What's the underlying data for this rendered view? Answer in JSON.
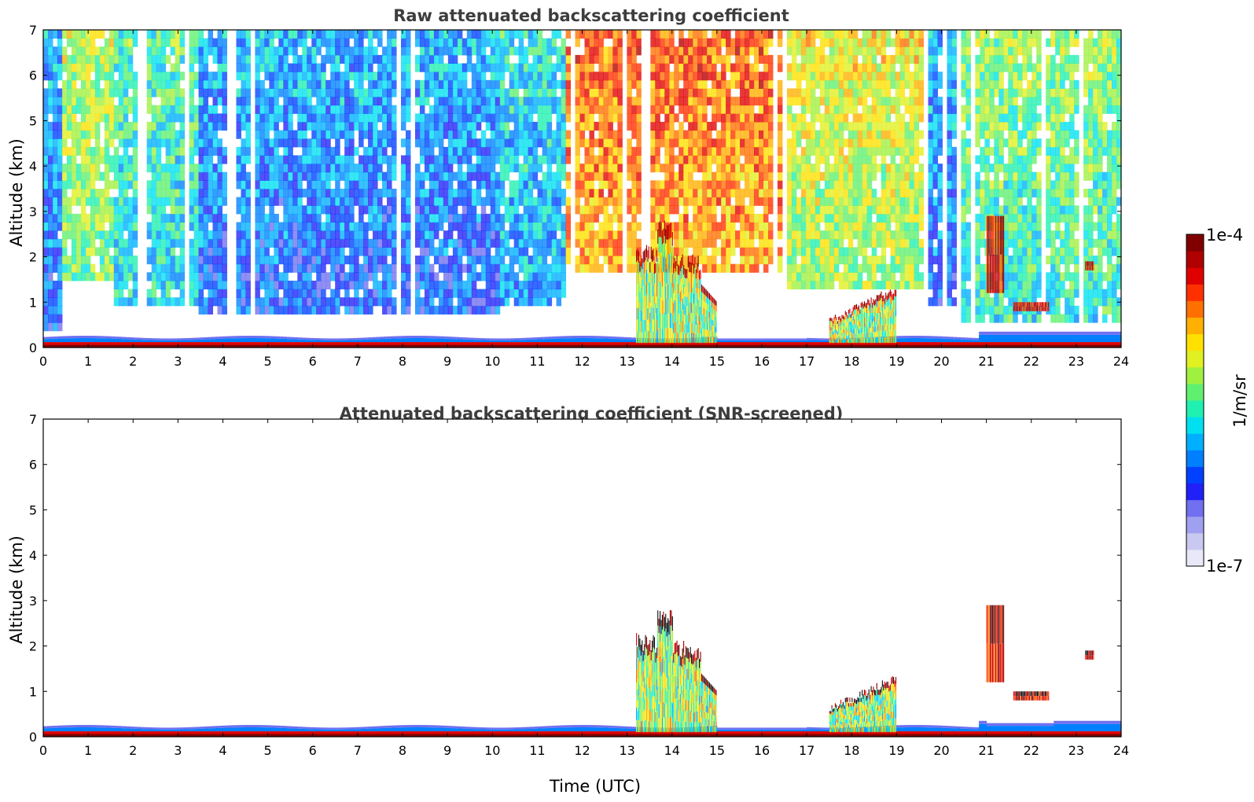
{
  "chart_data": [
    {
      "type": "heatmap",
      "title": "Raw attenuated backscattering coefficient",
      "xlabel": "",
      "ylabel": "Altitude (km)",
      "xlim": [
        0,
        24
      ],
      "ylim": [
        0,
        7
      ],
      "xticks": [
        "0",
        "1",
        "2",
        "3",
        "4",
        "5",
        "6",
        "7",
        "8",
        "9",
        "10",
        "11",
        "12",
        "13",
        "14",
        "15",
        "16",
        "17",
        "18",
        "19",
        "20",
        "21",
        "22",
        "23",
        "24"
      ],
      "yticks": [
        "0",
        "1",
        "2",
        "3",
        "4",
        "5",
        "6",
        "7"
      ],
      "features": [
        {
          "name": "surface-layer",
          "x": [
            0,
            24
          ],
          "y": [
            0,
            0.3
          ],
          "level": "high"
        },
        {
          "name": "convective-clouds",
          "x": [
            13.2,
            15.0
          ],
          "y": [
            0,
            2.9
          ],
          "level": "high"
        },
        {
          "name": "afternoon-clouds",
          "x": [
            17.5,
            19.0
          ],
          "y": [
            0,
            1.4
          ],
          "level": "medium-high"
        },
        {
          "name": "cloud-21h",
          "x": [
            21.0,
            21.4
          ],
          "y": [
            1.2,
            2.9
          ],
          "level": "high"
        },
        {
          "name": "cloud-22h",
          "x": [
            21.6,
            22.4
          ],
          "y": [
            0.8,
            1.0
          ],
          "level": "high"
        },
        {
          "name": "cloud-23h",
          "x": [
            23.2,
            23.4
          ],
          "y": [
            1.7,
            1.9
          ],
          "level": "high"
        },
        {
          "name": "daytime-noise-upper",
          "x": [
            11.7,
            16.5
          ],
          "y": [
            1,
            7
          ],
          "level": "noise-high"
        }
      ]
    },
    {
      "type": "heatmap",
      "title": "Attenuated backscattering coefficient (SNR-screened)",
      "xlabel": "Time (UTC)",
      "ylabel": "Altitude (km)",
      "xlim": [
        0,
        24
      ],
      "ylim": [
        0,
        7
      ],
      "xticks": [
        "0",
        "1",
        "2",
        "3",
        "4",
        "5",
        "6",
        "7",
        "8",
        "9",
        "10",
        "11",
        "12",
        "13",
        "14",
        "15",
        "16",
        "17",
        "18",
        "19",
        "20",
        "21",
        "22",
        "23",
        "24"
      ],
      "yticks": [
        "0",
        "1",
        "2",
        "3",
        "4",
        "5",
        "6",
        "7"
      ],
      "features": [
        {
          "name": "surface-layer",
          "x": [
            0,
            24
          ],
          "y": [
            0,
            0.25
          ],
          "level": "high"
        },
        {
          "name": "convective-clouds",
          "x": [
            13.2,
            15.0
          ],
          "y": [
            0,
            2.9
          ],
          "level": "high"
        },
        {
          "name": "afternoon-clouds",
          "x": [
            17.5,
            19.0
          ],
          "y": [
            0,
            1.4
          ],
          "level": "medium-high"
        },
        {
          "name": "cloud-21h",
          "x": [
            21.0,
            21.4
          ],
          "y": [
            1.2,
            2.9
          ],
          "level": "high"
        },
        {
          "name": "cloud-22h",
          "x": [
            21.6,
            22.4
          ],
          "y": [
            0.8,
            1.0
          ],
          "level": "high"
        },
        {
          "name": "cloud-23h",
          "x": [
            23.2,
            23.4
          ],
          "y": [
            1.7,
            1.9
          ],
          "level": "high"
        }
      ]
    }
  ],
  "colorbar": {
    "max_label": "1e-4",
    "min_label": "1e-7",
    "unit_label": "1/m/sr",
    "colors": [
      "#e8e8f8",
      "#c8c8f0",
      "#a0a0f0",
      "#7070f0",
      "#2020f8",
      "#0040ff",
      "#0080ff",
      "#00b0ff",
      "#00e0f0",
      "#20f0b0",
      "#60f070",
      "#a0f040",
      "#e0f020",
      "#ffe000",
      "#ffb000",
      "#ff7000",
      "#ff3000",
      "#e00000",
      "#b00000",
      "#800000"
    ]
  }
}
